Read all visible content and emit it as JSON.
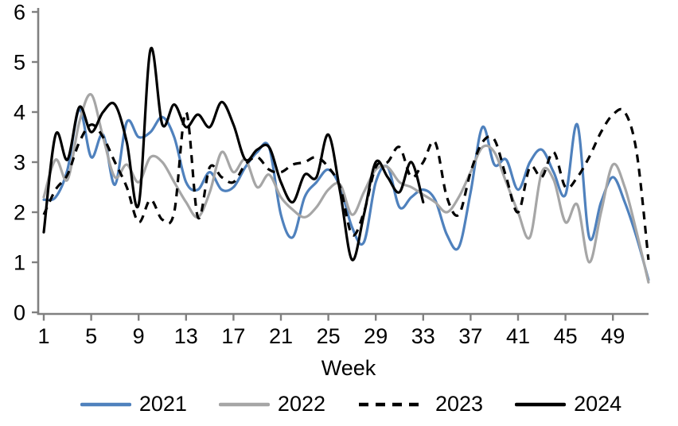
{
  "chart_data": {
    "type": "line",
    "title": "",
    "xlabel": "Week",
    "ylabel": "",
    "x_range": [
      1,
      52
    ],
    "ylim": [
      0,
      6
    ],
    "yticks": [
      0,
      1,
      2,
      3,
      4,
      5,
      6
    ],
    "xticks": [
      1,
      5,
      9,
      13,
      17,
      21,
      25,
      29,
      33,
      37,
      41,
      45,
      49
    ],
    "grid": false,
    "smoothed_lines": true,
    "legend_position": "bottom",
    "axis_color": "#808080",
    "text_color": "#000000",
    "series": [
      {
        "name": "2021",
        "color": "#4F81BD",
        "style": "solid",
        "start_week": 1,
        "values": [
          2.25,
          2.3,
          2.85,
          4.05,
          3.1,
          3.55,
          2.55,
          3.8,
          3.5,
          3.6,
          3.9,
          3.5,
          2.6,
          2.45,
          2.8,
          2.45,
          2.5,
          2.9,
          3.2,
          3.3,
          1.95,
          1.5,
          2.3,
          2.6,
          2.85,
          2.5,
          1.7,
          1.4,
          2.6,
          2.9,
          2.1,
          2.3,
          2.45,
          2.25,
          1.55,
          1.3,
          2.4,
          3.7,
          2.95,
          3.05,
          2.45,
          3.0,
          3.25,
          2.8,
          2.35,
          3.75,
          1.5,
          2.2,
          2.7,
          2.2,
          1.5,
          0.65
        ]
      },
      {
        "name": "2022",
        "color": "#A6A6A6",
        "style": "solid",
        "start_week": 1,
        "values": [
          2.3,
          3.05,
          2.65,
          3.8,
          4.35,
          3.5,
          2.7,
          2.95,
          2.6,
          3.1,
          3.0,
          2.6,
          2.2,
          1.9,
          2.4,
          3.2,
          2.8,
          3.05,
          2.5,
          2.75,
          2.3,
          2.05,
          1.9,
          2.1,
          2.45,
          2.55,
          1.95,
          2.4,
          2.85,
          2.9,
          2.6,
          2.5,
          2.35,
          2.2,
          2.0,
          2.3,
          2.8,
          3.3,
          3.2,
          2.6,
          2.0,
          1.5,
          2.8,
          2.65,
          1.8,
          2.15,
          1.0,
          2.0,
          2.95,
          2.5,
          1.6,
          0.6
        ]
      },
      {
        "name": "2023",
        "color": "#000000",
        "style": "dashed",
        "start_week": 1,
        "values": [
          1.95,
          2.45,
          2.75,
          3.4,
          3.75,
          3.5,
          3.0,
          2.5,
          1.8,
          2.25,
          1.85,
          2.0,
          4.0,
          1.9,
          2.9,
          2.7,
          2.6,
          2.95,
          3.1,
          2.85,
          2.8,
          2.95,
          3.0,
          3.1,
          2.9,
          2.5,
          1.55,
          2.0,
          2.9,
          3.0,
          3.3,
          2.7,
          3.0,
          3.4,
          2.3,
          1.95,
          2.8,
          3.4,
          3.45,
          2.7,
          2.0,
          2.9,
          2.7,
          3.2,
          2.5,
          2.7,
          3.1,
          3.6,
          3.95,
          4.0,
          3.2,
          1.05
        ]
      },
      {
        "name": "2024",
        "color": "#000000",
        "style": "solid",
        "start_week": 1,
        "values": [
          1.6,
          3.55,
          3.05,
          4.1,
          3.6,
          4.0,
          4.15,
          3.4,
          2.15,
          5.25,
          3.75,
          4.15,
          3.7,
          3.95,
          3.7,
          4.2,
          3.75,
          3.05,
          3.25,
          3.3,
          2.6,
          2.2,
          2.75,
          2.7,
          3.55,
          2.4,
          1.05,
          1.95,
          3.0,
          2.7,
          2.4,
          3.0,
          2.2
        ]
      }
    ]
  }
}
